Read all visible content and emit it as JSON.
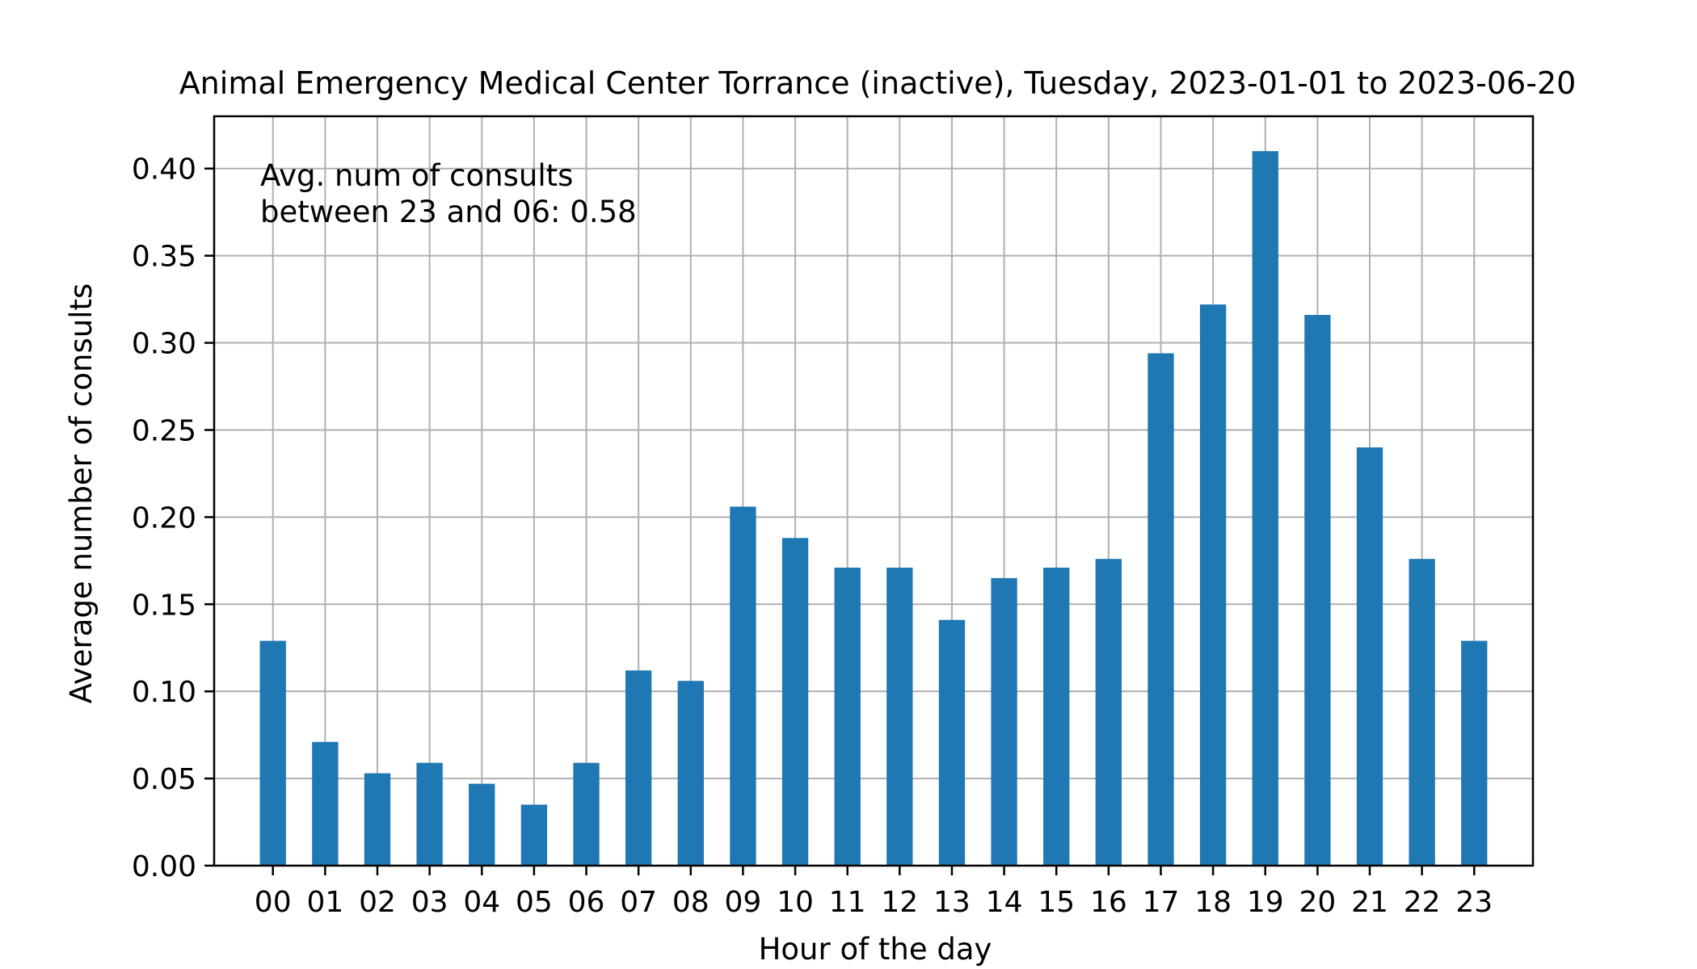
{
  "chart_data": {
    "type": "bar",
    "title": "Animal Emergency Medical Center Torrance (inactive), Tuesday, 2023-01-01 to 2023-06-20",
    "xlabel": "Hour of the day",
    "ylabel": "Average number of consults",
    "annotation": [
      "Avg. num of consults",
      "between 23 and 06: 0.58"
    ],
    "categories": [
      "00",
      "01",
      "02",
      "03",
      "04",
      "05",
      "06",
      "07",
      "08",
      "09",
      "10",
      "11",
      "12",
      "13",
      "14",
      "15",
      "16",
      "17",
      "18",
      "19",
      "20",
      "21",
      "22",
      "23"
    ],
    "values": [
      0.129,
      0.071,
      0.053,
      0.059,
      0.047,
      0.035,
      0.059,
      0.112,
      0.106,
      0.206,
      0.188,
      0.171,
      0.171,
      0.141,
      0.165,
      0.171,
      0.176,
      0.294,
      0.322,
      0.41,
      0.316,
      0.24,
      0.176,
      0.129
    ],
    "ylim": [
      0,
      0.43
    ],
    "yticks": [
      "0.00",
      "0.05",
      "0.10",
      "0.15",
      "0.20",
      "0.25",
      "0.30",
      "0.35",
      "0.40"
    ],
    "grid": true,
    "bar_color": "#1f77b4",
    "grid_color": "#b0b0b0"
  }
}
